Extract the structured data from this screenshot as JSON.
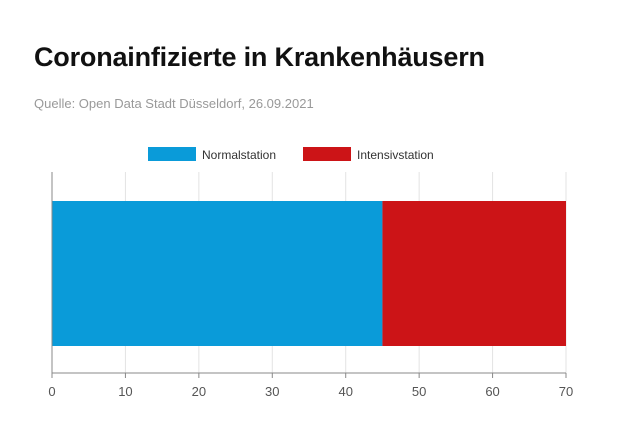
{
  "header": {
    "title": "Coronainfizierte in Krankenhäusern",
    "source": "Quelle: Open Data Stadt Düsseldorf, 26.09.2021"
  },
  "chart_data": {
    "type": "bar",
    "orientation": "horizontal",
    "stacked": true,
    "categories": [
      ""
    ],
    "series": [
      {
        "name": "Normalstation",
        "values": [
          45
        ],
        "color": "#0a9bd9"
      },
      {
        "name": "Intensivstation",
        "values": [
          25
        ],
        "color": "#cc1417"
      }
    ],
    "xticks": [
      0,
      10,
      20,
      30,
      40,
      50,
      60,
      70
    ],
    "xlim": [
      0,
      70
    ],
    "grid": true,
    "legend": "top-center",
    "title": "Coronainfizierte in Krankenhäusern",
    "xlabel": "",
    "ylabel": ""
  }
}
